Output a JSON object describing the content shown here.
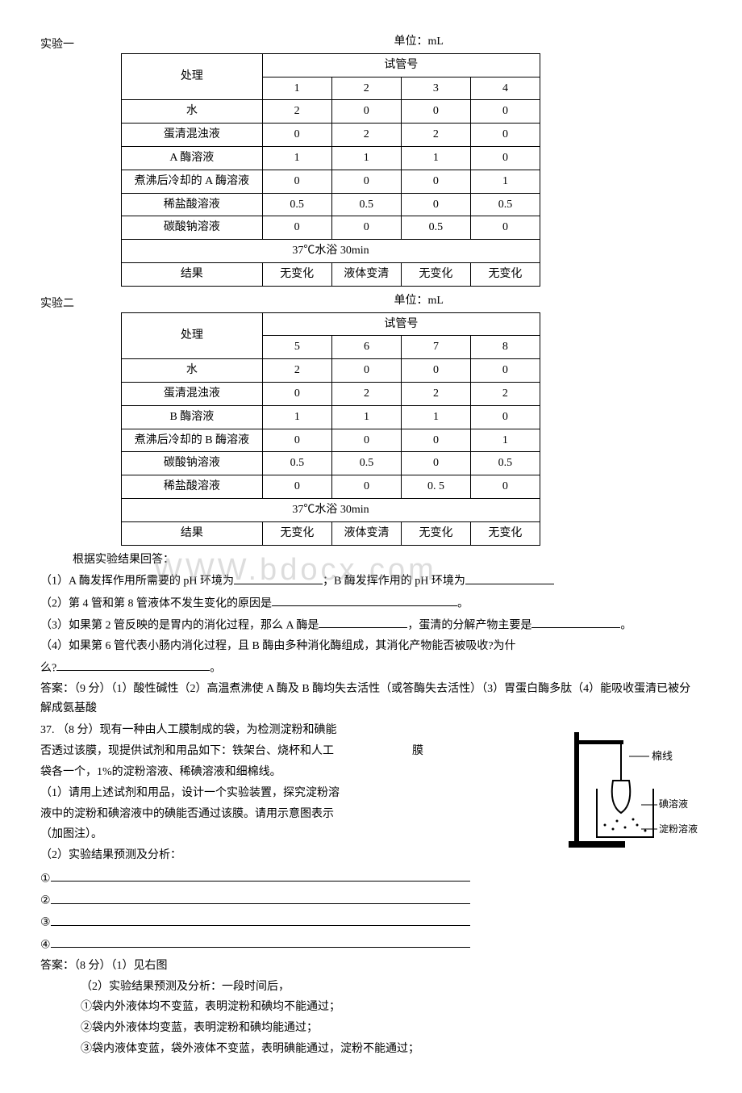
{
  "exp1": {
    "label": "实验一",
    "unit": "单位：mL",
    "header_process": "处理",
    "header_group": "试管号",
    "cols": [
      "1",
      "2",
      "3",
      "4"
    ],
    "rows": [
      {
        "name": "水",
        "v": [
          "2",
          "0",
          "0",
          "0"
        ]
      },
      {
        "name": "蛋清混浊液",
        "v": [
          "0",
          "2",
          "2",
          "0"
        ]
      },
      {
        "name": "A 酶溶液",
        "v": [
          "1",
          "1",
          "1",
          "0"
        ]
      },
      {
        "name": "煮沸后冷却的 A 酶溶液",
        "v": [
          "0",
          "0",
          "0",
          "1"
        ]
      },
      {
        "name": "稀盐酸溶液",
        "v": [
          "0.5",
          "0.5",
          "0",
          "0.5"
        ]
      },
      {
        "name": "碳酸钠溶液",
        "v": [
          "0",
          "0",
          "0.5",
          "0"
        ]
      }
    ],
    "bath": "37℃水浴 30min",
    "result_label": "结果",
    "results": [
      "无变化",
      "液体变清",
      "无变化",
      "无变化"
    ]
  },
  "exp2": {
    "label": "实验二",
    "unit": "单位：mL",
    "header_process": "处理",
    "header_group": "试管号",
    "cols": [
      "5",
      "6",
      "7",
      "8"
    ],
    "rows": [
      {
        "name": "水",
        "v": [
          "2",
          "0",
          "0",
          "0"
        ]
      },
      {
        "name": "蛋清混浊液",
        "v": [
          "0",
          "2",
          "2",
          "2"
        ]
      },
      {
        "name": "B 酶溶液",
        "v": [
          "1",
          "1",
          "1",
          "0"
        ]
      },
      {
        "name": "煮沸后冷却的 B 酶溶液",
        "v": [
          "0",
          "0",
          "0",
          "1"
        ]
      },
      {
        "name": "碳酸钠溶液",
        "v": [
          "0.5",
          "0.5",
          "0",
          "0.5"
        ]
      },
      {
        "name": "稀盐酸溶液",
        "v": [
          "0",
          "0",
          "0. 5",
          "0"
        ]
      }
    ],
    "bath": "37℃水浴 30min",
    "result_label": "结果",
    "results": [
      "无变化",
      "液体变清",
      "无变化",
      "无变化"
    ]
  },
  "watermark": "WWW.bdocx.com",
  "q_intro": "根据实验结果回答：",
  "q1_a": "（1）A 酶发挥作用所需要的 pH 环境为",
  "q1_b": "；B 酶发挥作用的 pH 环境为",
  "q2": "（2）第 4 管和第 8 管液体不发生变化的原因是",
  "q2_end": "。",
  "q3_a": "（3）如果第 2 管反映的是胃内的消化过程，那么 A 酶是",
  "q3_b": "，蛋清的分解产物主要是",
  "q3_end": "。",
  "q4_a": "（4）如果第 6 管代表小肠内消化过程，且 B 酶由多种消化酶组成，其消化产物能否被吸收?为什",
  "q4_b": "么?",
  "q4_end": "。",
  "ans1": "答案：（9 分）（1）酸性碱性（2）高温煮沸使 A 酶及 B 酶均失去活性（或答酶失去活性）（3）胃蛋白酶多肽（4）能吸收蛋清已被分解成氨基酸",
  "q37_p1": "37. （8 分）现有一种由人工膜制成的袋，为检测淀粉和碘能",
  "q37_p2": "否透过该膜，现提供试剂和用品如下：铁架台、烧杯和人工",
  "q37_p3": "袋各一个，1%的淀粉溶液、稀碘溶液和细棉线。",
  "q37_p4": "（1）请用上述试剂和用品，设计一个实验装置，探究淀粉溶",
  "q37_p5": "液中的淀粉和碘溶液中的碘能否通过该膜。请用示意图表示",
  "q37_p6": "（加图注）。",
  "q37_2": "（2）实验结果预测及分析：",
  "fig_membrane": "膜",
  "fig_thread": "棉线",
  "fig_iodine": "碘溶液",
  "fig_starch": "淀粉溶液",
  "circ1": "①",
  "circ2": "②",
  "circ3": "③",
  "circ4": "④",
  "ans2_head": "答案：（8 分）（1）见右图",
  "ans2_sub": "（2）实验结果预测及分析：一段时间后，",
  "ans2_1": "①袋内外液体均不变蓝，表明淀粉和碘均不能通过；",
  "ans2_2": "②袋内外液体均变蓝，表明淀粉和碘均能通过；",
  "ans2_3": "③袋内液体变蓝，袋外液体不变蓝，表明碘能通过，淀粉不能通过；"
}
